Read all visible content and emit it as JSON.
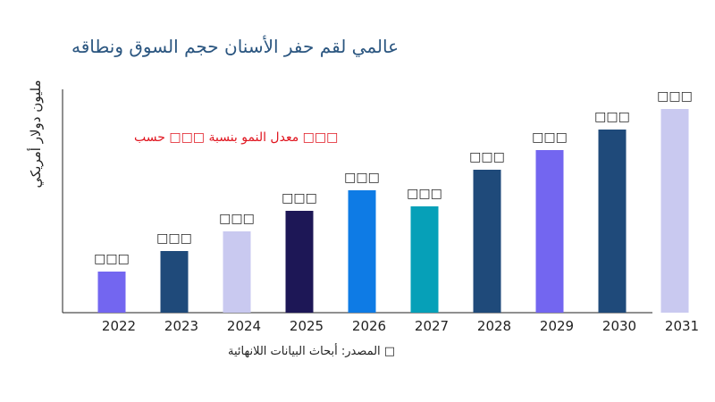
{
  "chart_data": {
    "type": "bar",
    "title": "عالمي لقم حفر الأسنان حجم السوق ونطاقه",
    "ylabel": "مليون دولار أمريكي",
    "xlabel": "",
    "annotation": "معدل النمو بنسبة □□□ حسب □□□",
    "source": "المصدر: أبحاث البيانات اللانهائية □",
    "categories": [
      "2022",
      "2023",
      "2024",
      "2025",
      "2026",
      "2027",
      "2028",
      "2029",
      "2030",
      "2031"
    ],
    "values": [
      46,
      69,
      91,
      114,
      137,
      119,
      160,
      182,
      205,
      228
    ],
    "data_labels": [
      "□□□",
      "□□□",
      "□□□",
      "□□□",
      "□□□",
      "□□□",
      "□□□",
      "□□□",
      "□□□",
      "□□□"
    ],
    "colors": [
      "#7366f0",
      "#1f4a7a",
      "#c9c9f0",
      "#1d1756",
      "#0e7be5",
      "#06a0b8",
      "#1f4a7a",
      "#7366f0",
      "#1f4a7a",
      "#c9c9f0"
    ],
    "ylim": [
      0,
      250
    ],
    "grid": false,
    "y_ticks_shown": false
  }
}
